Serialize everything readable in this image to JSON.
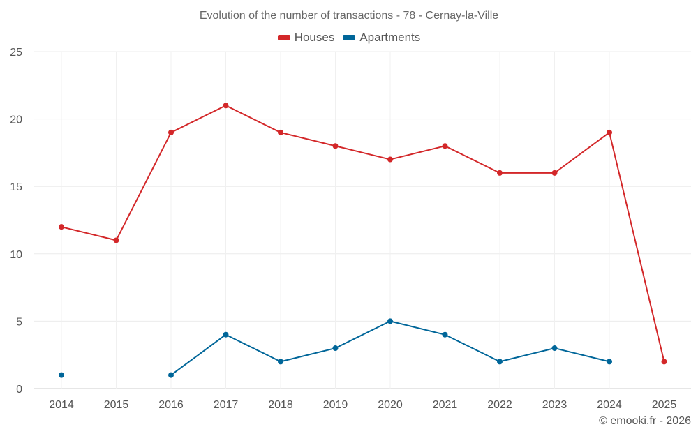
{
  "chart_data": {
    "type": "line",
    "title": "Evolution of the number of transactions - 78 - Cernay-la-Ville",
    "categories": [
      "2014",
      "2015",
      "2016",
      "2017",
      "2018",
      "2019",
      "2020",
      "2021",
      "2022",
      "2023",
      "2024",
      "2025"
    ],
    "ylim": [
      0,
      25
    ],
    "yticks": [
      0,
      5,
      10,
      15,
      20,
      25
    ],
    "grid": true,
    "legend_position": "top-center",
    "series": [
      {
        "name": "Houses",
        "color": "#d32729",
        "values": [
          12,
          11,
          19,
          21,
          19,
          18,
          17,
          18,
          16,
          16,
          19,
          2
        ]
      },
      {
        "name": "Apartments",
        "color": "#006699",
        "values": [
          1,
          null,
          1,
          4,
          2,
          3,
          5,
          4,
          2,
          3,
          2,
          null
        ]
      }
    ]
  },
  "footer": {
    "credit": "© emooki.fr - 2026"
  }
}
